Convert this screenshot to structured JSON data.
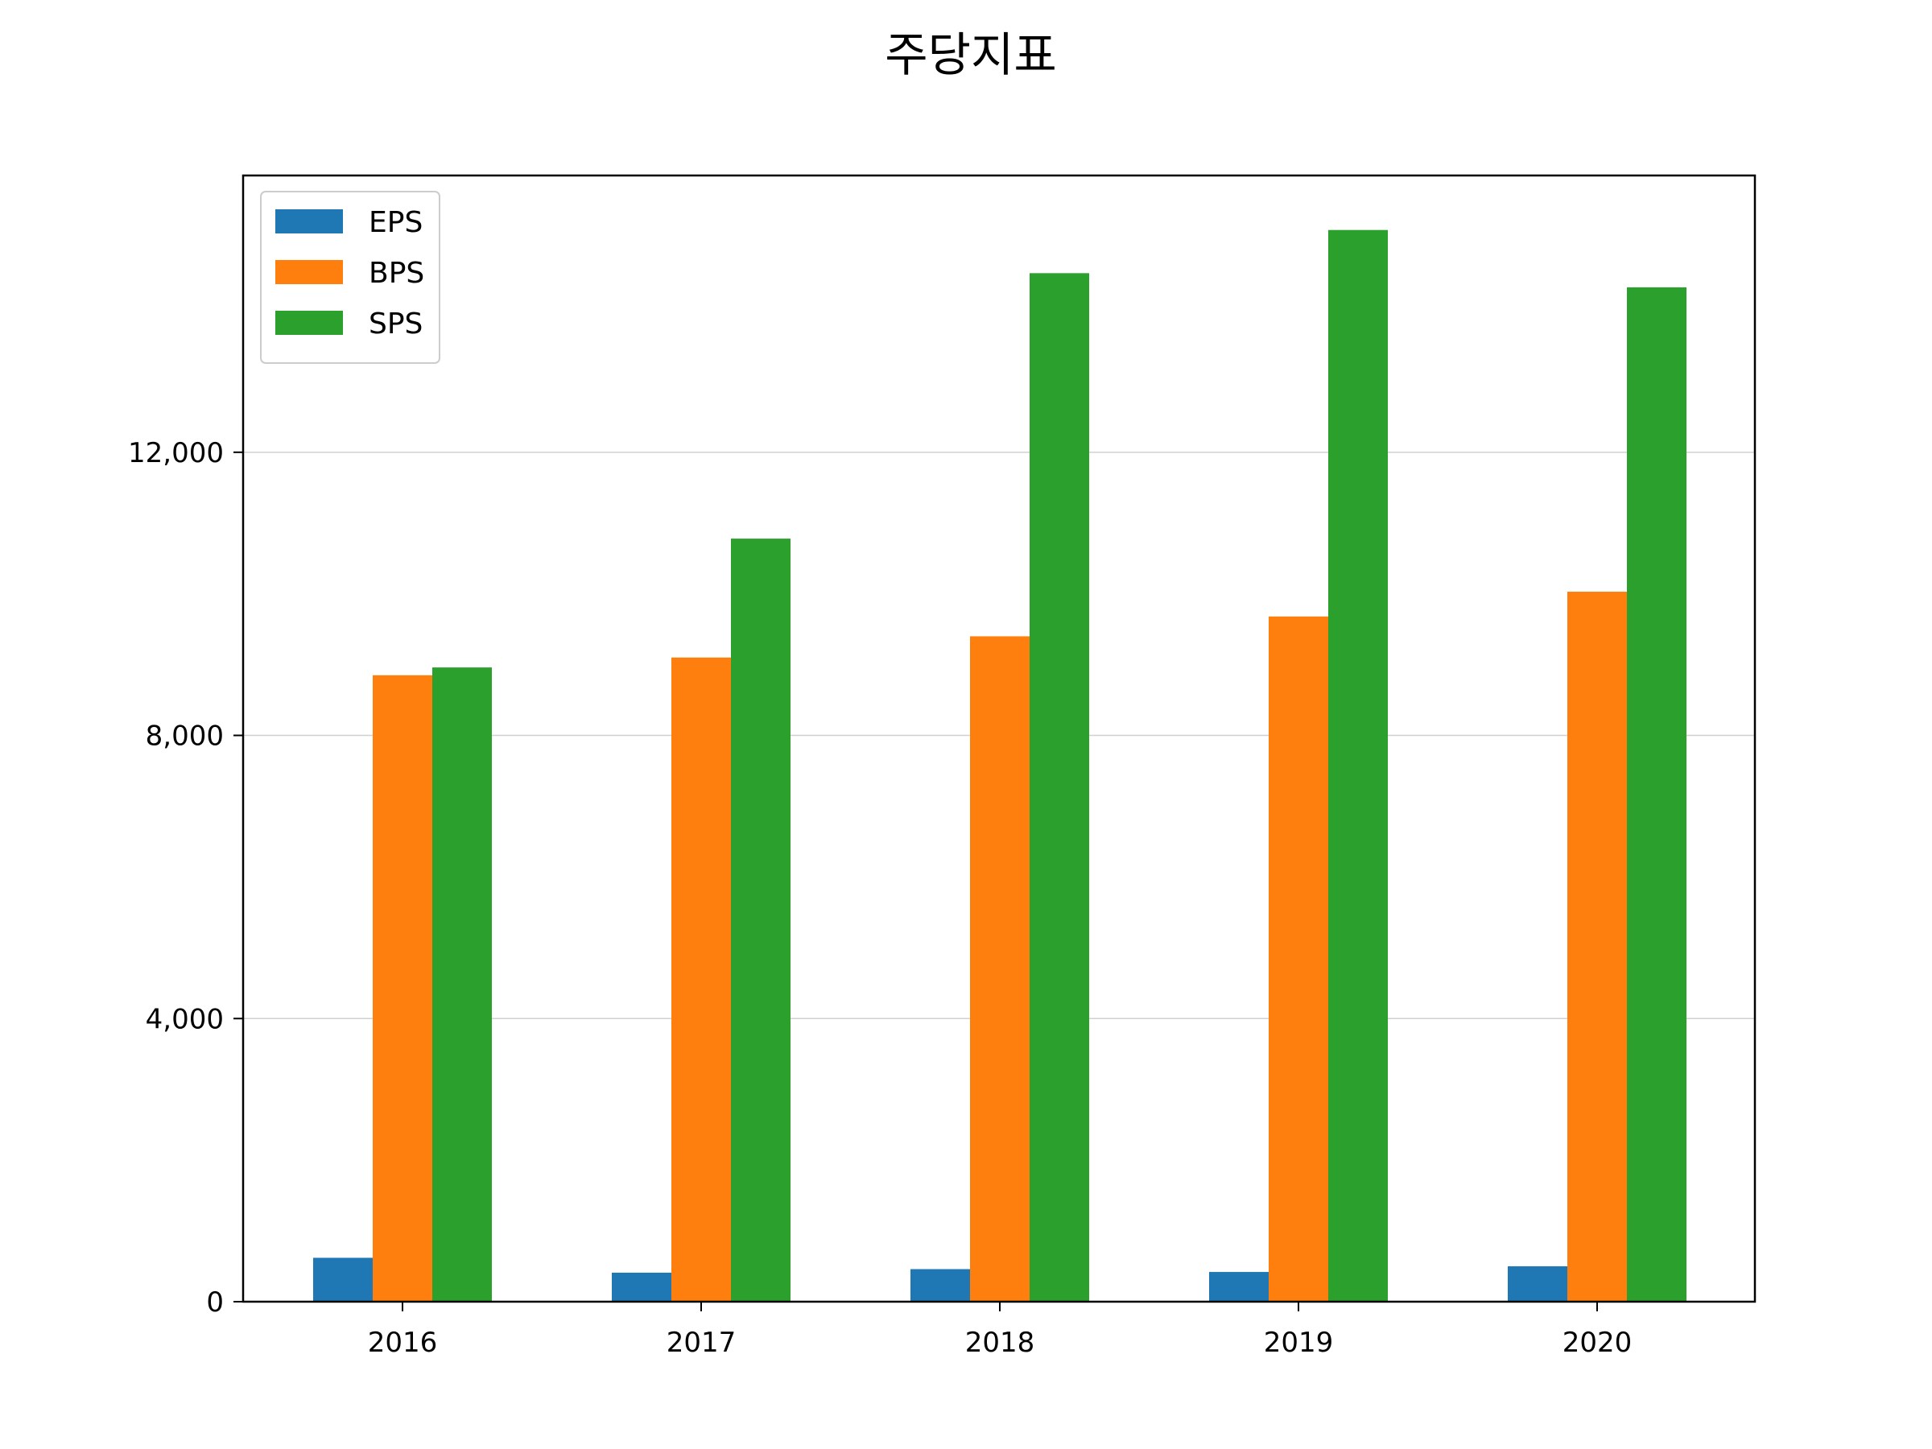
{
  "chart_data": {
    "type": "bar",
    "title": "주당지표",
    "xlabel": "",
    "ylabel": "",
    "categories": [
      "2016",
      "2017",
      "2018",
      "2019",
      "2020"
    ],
    "series": [
      {
        "name": "EPS",
        "color": "#1f77b4",
        "values": [
          620,
          410,
          460,
          420,
          500
        ]
      },
      {
        "name": "BPS",
        "color": "#ff7f0e",
        "values": [
          8850,
          9100,
          9400,
          9680,
          10030
        ]
      },
      {
        "name": "SPS",
        "color": "#2ca02c",
        "values": [
          8960,
          10780,
          14530,
          15140,
          14330
        ]
      }
    ],
    "ylim": [
      0,
      15910
    ],
    "yticks": [
      0,
      4000,
      8000,
      12000
    ],
    "ytick_labels": [
      "0",
      "4,000",
      "8,000",
      "12,000"
    ],
    "grid": "horizontal",
    "grid_color": "#d0d0d0",
    "legend": "top-left"
  }
}
